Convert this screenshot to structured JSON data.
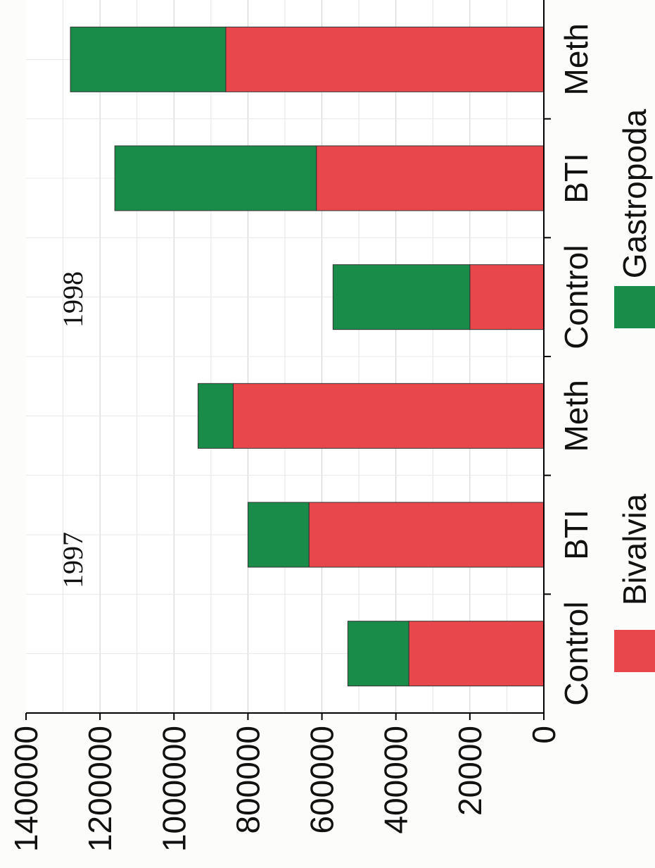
{
  "chart_data": {
    "type": "bar",
    "stacked": true,
    "orientation": "rotated-90-clockwise",
    "categories": [
      "Control",
      "BTI",
      "Meth",
      "Control",
      "BTI",
      "Meth"
    ],
    "groups": [
      {
        "label": "1997",
        "categories": [
          "Control",
          "BTI",
          "Meth"
        ]
      },
      {
        "label": "1998",
        "categories": [
          "Control",
          "BTI",
          "Meth"
        ]
      }
    ],
    "series": [
      {
        "name": "Bivalvia",
        "color": "#e8474c",
        "values": [
          365000,
          635000,
          840000,
          200000,
          615000,
          860000
        ]
      },
      {
        "name": "Gastropoda",
        "color": "#1a8c4a",
        "values": [
          165000,
          165000,
          95000,
          370000,
          545000,
          420000
        ]
      }
    ],
    "ylim": [
      0,
      1400000
    ],
    "yticks": [
      "0",
      "20000",
      "400000",
      "600000",
      "800000",
      "1000000",
      "1200000",
      "1400000"
    ],
    "grid": true,
    "legend_position": "bottom"
  }
}
